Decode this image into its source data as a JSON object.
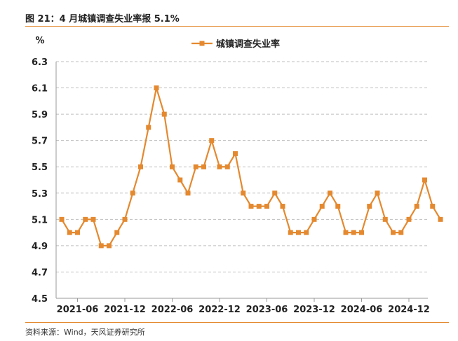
{
  "figure": {
    "title": "图 21：4 月城镇调查失业率报 5.1%",
    "source": "资料来源：Wind，天风证券研究所"
  },
  "chart_data": {
    "type": "line",
    "ylabel": "%",
    "ylim": [
      4.5,
      6.3
    ],
    "yticks": [
      4.5,
      4.7,
      4.9,
      5.1,
      5.3,
      5.5,
      5.7,
      5.9,
      6.1,
      6.3
    ],
    "ytick_labels": [
      "4.5",
      "4.7",
      "4.9",
      "5.1",
      "5.3",
      "5.5",
      "5.7",
      "5.9",
      "6.1",
      "6.3"
    ],
    "xtick_labels": [
      "2021-06",
      "2021-12",
      "2022-06",
      "2022-12",
      "2023-06",
      "2023-12",
      "2024-06",
      "2024-12"
    ],
    "x": [
      "2021-04",
      "2021-05",
      "2021-06",
      "2021-07",
      "2021-08",
      "2021-09",
      "2021-10",
      "2021-11",
      "2021-12",
      "2022-01",
      "2022-02",
      "2022-03",
      "2022-04",
      "2022-05",
      "2022-06",
      "2022-07",
      "2022-08",
      "2022-09",
      "2022-10",
      "2022-11",
      "2022-12",
      "2023-01",
      "2023-02",
      "2023-03",
      "2023-04",
      "2023-05",
      "2023-06",
      "2023-07",
      "2023-08",
      "2023-09",
      "2023-10",
      "2023-11",
      "2023-12",
      "2024-01",
      "2024-02",
      "2024-03",
      "2024-04",
      "2024-05",
      "2024-06",
      "2024-07",
      "2024-08",
      "2024-09",
      "2024-10",
      "2024-11",
      "2024-12",
      "2025-01",
      "2025-02",
      "2025-03",
      "2025-04"
    ],
    "series": [
      {
        "name": "城镇调查失业率",
        "color": "#E4892F",
        "marker": "square",
        "values": [
          5.1,
          5.0,
          5.0,
          5.1,
          5.1,
          4.9,
          4.9,
          5.0,
          5.1,
          5.3,
          5.5,
          5.8,
          6.1,
          5.9,
          5.5,
          5.4,
          5.3,
          5.5,
          5.5,
          5.7,
          5.5,
          5.5,
          5.6,
          5.3,
          5.2,
          5.2,
          5.2,
          5.3,
          5.2,
          5.0,
          5.0,
          5.0,
          5.1,
          5.2,
          5.3,
          5.2,
          5.0,
          5.0,
          5.0,
          5.2,
          5.3,
          5.1,
          5.0,
          5.0,
          5.1,
          5.2,
          5.4,
          5.2,
          5.1
        ]
      }
    ],
    "legend_position": "top-center",
    "grid": "horizontal-dashed",
    "axis_color": "#999999",
    "grid_color": "#BFBFBF"
  }
}
